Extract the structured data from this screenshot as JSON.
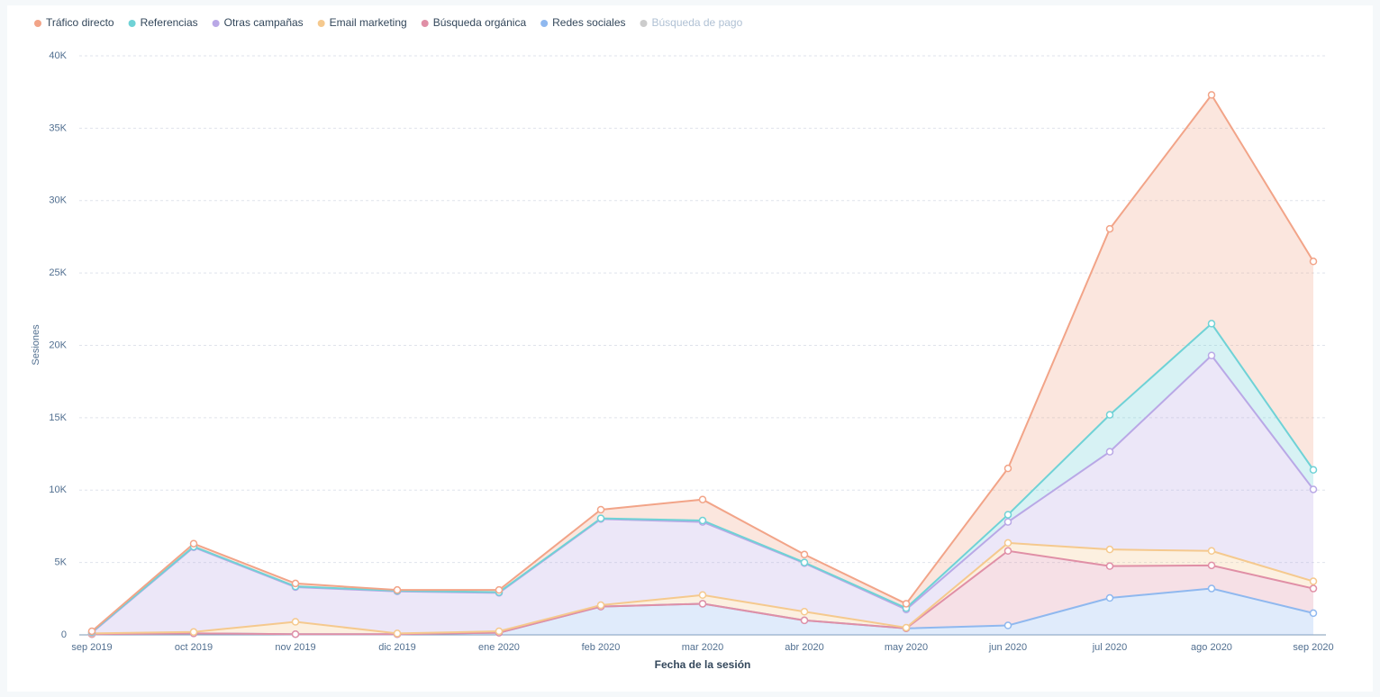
{
  "chart_data": {
    "type": "stacked-area",
    "x_label": "Fecha de la sesión",
    "y_label": "Sesiones",
    "categories": [
      "sep 2019",
      "oct 2019",
      "nov 2019",
      "dic 2019",
      "ene 2020",
      "feb 2020",
      "mar 2020",
      "abr 2020",
      "may 2020",
      "jun 2020",
      "jul 2020",
      "ago 2020",
      "sep 2020"
    ],
    "series": [
      {
        "name": "Tráfico directo",
        "color": "#f2a488",
        "values": [
          50,
          200,
          200,
          50,
          150,
          600,
          1450,
          550,
          300,
          3200,
          12850,
          15800,
          14400
        ]
      },
      {
        "name": "Referencias",
        "color": "#6fd2d6",
        "values": [
          50,
          50,
          50,
          50,
          50,
          50,
          100,
          50,
          100,
          500,
          2550,
          2200,
          1350
        ]
      },
      {
        "name": "Otras campañas",
        "color": "#b9a8e6",
        "values": [
          50,
          5850,
          2400,
          2900,
          2650,
          5950,
          5050,
          3350,
          1250,
          1450,
          6750,
          13500,
          6350
        ]
      },
      {
        "name": "Email marketing",
        "color": "#f5c98e",
        "values": [
          50,
          100,
          850,
          50,
          100,
          100,
          600,
          600,
          50,
          550,
          1150,
          1000,
          500
        ]
      },
      {
        "name": "Búsqueda orgánica",
        "color": "#e08fa6",
        "values": [
          0,
          0,
          0,
          0,
          0,
          0,
          0,
          0,
          0,
          5150,
          2200,
          1600,
          1700
        ]
      },
      {
        "name": "Redes sociales",
        "color": "#8fb8ef",
        "values": [
          50,
          100,
          50,
          50,
          150,
          1950,
          2150,
          1000,
          450,
          650,
          2550,
          3200,
          1500
        ]
      },
      {
        "name": "Búsqueda de pago",
        "color": "#cccccc",
        "hidden": true,
        "values": [
          null,
          null,
          null,
          null,
          null,
          null,
          null,
          null,
          null,
          null,
          null,
          null,
          null
        ]
      }
    ],
    "ylim": [
      0,
      40000
    ],
    "yticks": [
      0,
      {
        "value": 5000,
        "label": "5K"
      },
      {
        "value": 10000,
        "label": "10K"
      },
      {
        "value": 15000,
        "label": "15K"
      },
      {
        "value": 20000,
        "label": "20K"
      },
      {
        "value": 25000,
        "label": "25K"
      },
      {
        "value": 30000,
        "label": "30K"
      },
      {
        "value": 35000,
        "label": "35K"
      },
      {
        "value": 40000,
        "label": "40K"
      }
    ],
    "grid": true,
    "legend": "top-left"
  }
}
